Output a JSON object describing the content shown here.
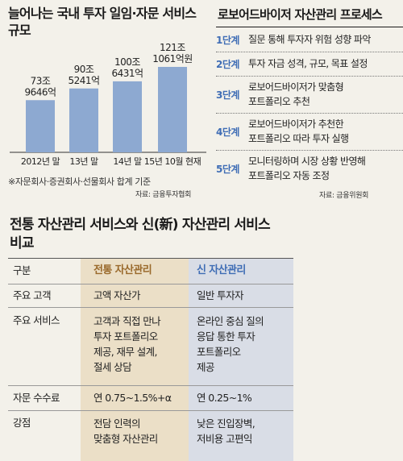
{
  "chart_data": {
    "type": "bar",
    "title": "늘어나는 국내 투자 일임·자문 서비스 규모",
    "categories": [
      "2012년 말",
      "13년 말",
      "14년 말",
      "15년 10월 현재"
    ],
    "values": [
      739646,
      905241,
      1006431,
      1211061
    ],
    "value_labels": [
      [
        "73조",
        "9646억"
      ],
      [
        "90조",
        "5241억"
      ],
      [
        "100조",
        "6431억"
      ],
      [
        "121조",
        "1061억원"
      ]
    ],
    "unit": "억원",
    "note": "※자문회사·증권회사·선물회사 합계 기준",
    "source": "자료: 금융투자협회",
    "bar_color": "#8da9d1"
  },
  "process": {
    "title": "로보어드바이저 자산관리 프로세스",
    "steps": [
      {
        "label": "1단계",
        "lines": [
          "질문 통해 투자자 위험 성향 파악"
        ]
      },
      {
        "label": "2단계",
        "lines": [
          "투자 자금 성격, 규모, 목표 설정"
        ]
      },
      {
        "label": "3단계",
        "lines": [
          "로보어드바이저가 맞춤형",
          "포트폴리오 추천"
        ]
      },
      {
        "label": "4단계",
        "lines": [
          "로보어드바이저가 추천한",
          "포트폴리오 따라 투자 실행"
        ]
      },
      {
        "label": "5단계",
        "lines": [
          "모니터링하며 시장 상황 반영해",
          "포트폴리오 자동 조정"
        ]
      }
    ],
    "source": "자료: 금융위원회"
  },
  "compare": {
    "title": "전통 자산관리 서비스와 신(新) 자산관리 서비스 비교",
    "header": [
      "구분",
      "전통 자산관리",
      "신 자산관리"
    ],
    "rows": [
      {
        "label": "주요 고객",
        "trad": [
          "고액 자산가"
        ],
        "new": [
          "일반 투자자"
        ]
      },
      {
        "label": "주요 서비스",
        "trad": [
          "고객과 직접 만나",
          "투자 포트폴리오",
          "제공, 재무 설계,",
          "절세 상담"
        ],
        "new": [
          "온라인 중심 질의",
          "응답 통한 투자",
          "포트폴리오",
          "제공"
        ]
      },
      {
        "label": "자문 수수료",
        "trad": [
          "연 0.75~1.5%+α"
        ],
        "new": [
          "연 0.25~1%"
        ]
      },
      {
        "label": "강점",
        "trad": [
          "전담 인력의",
          "맞춤형 자산관리"
        ],
        "new": [
          "낮은 진입장벽,",
          "저비용 고편익"
        ]
      }
    ]
  }
}
